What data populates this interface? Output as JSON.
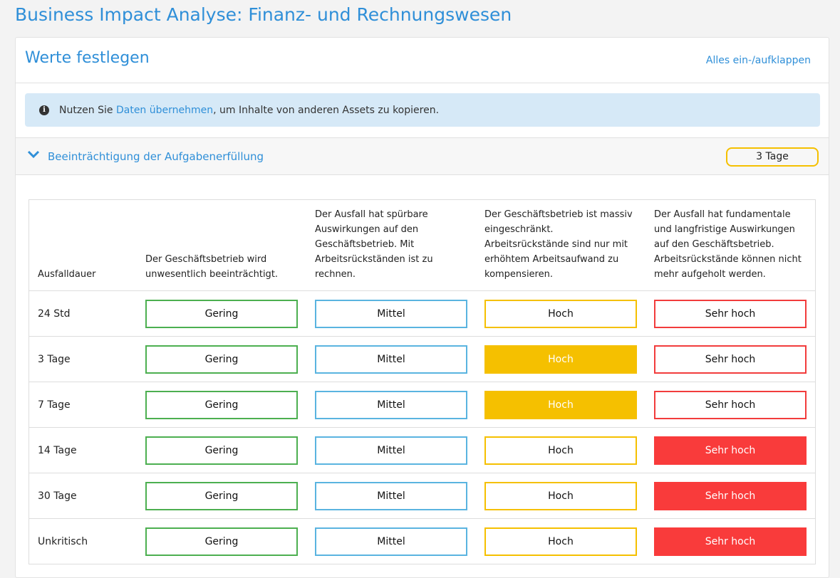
{
  "page_title": "Business Impact Analyse: Finanz- und Rechnungswesen",
  "card": {
    "title": "Werte festlegen",
    "toggle_all": "Alles ein-/aufklappen"
  },
  "info": {
    "prefix": "Nutzen Sie ",
    "link": "Daten übernehmen",
    "suffix": ", um Inhalte von anderen Assets zu kopieren."
  },
  "section": {
    "title": "Beeinträchtigung der Aufgabenerfüllung",
    "badge": "3 Tage"
  },
  "colors": {
    "gering": "#4caf50",
    "mittel": "#5ab4e0",
    "hoch": "#f5c000",
    "sehr_hoch": "#f93b3b"
  },
  "table": {
    "headers": [
      "Ausfalldauer",
      "Der Geschäftsbetrieb wird unwesentlich beeinträchtigt.",
      "Der Ausfall hat spürbare Auswirkungen auf den Geschäftsbetrieb. Mit Arbeitsrückständen ist zu rechnen.",
      "Der Geschäftsbetrieb ist massiv eingeschränkt. Arbeitsrückstände sind nur mit erhöhtem Arbeitsaufwand zu kompensieren.",
      "Der Ausfall hat fundamentale und langfristige Auswirkungen auf den Geschäftsbetrieb. Arbeitsrückstände können nicht mehr aufgeholt werden."
    ],
    "levels": [
      "Gering",
      "Mittel",
      "Hoch",
      "Sehr hoch"
    ],
    "rows": [
      {
        "label": "24 Std",
        "selected": null
      },
      {
        "label": "3 Tage",
        "selected": 2
      },
      {
        "label": "7 Tage",
        "selected": 2
      },
      {
        "label": "14 Tage",
        "selected": 3
      },
      {
        "label": "30 Tage",
        "selected": 3
      },
      {
        "label": "Unkritisch",
        "selected": 3
      }
    ]
  }
}
